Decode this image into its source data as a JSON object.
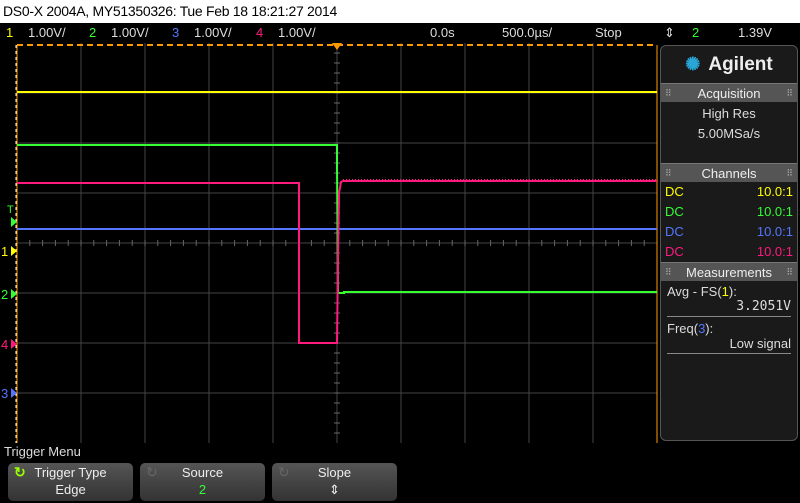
{
  "title": "DS0-X 2004A, MY51350326: Tue Feb 18 18:21:27 2014",
  "channels": [
    {
      "num": "1",
      "scale": "1.00V/",
      "color": "#ffff00",
      "coupling": "DC",
      "probe": "10.0:1"
    },
    {
      "num": "2",
      "scale": "1.00V/",
      "color": "#33ff33",
      "coupling": "DC",
      "probe": "10.0:1"
    },
    {
      "num": "3",
      "scale": "1.00V/",
      "color": "#5577ff",
      "coupling": "DC",
      "probe": "10.0:1"
    },
    {
      "num": "4",
      "scale": "1.00V/",
      "color": "#ff1a7f",
      "coupling": "DC",
      "probe": "10.0:1"
    }
  ],
  "timebase": {
    "delay": "0.0s",
    "scale": "500.0µs/",
    "run_state": "Stop"
  },
  "trigger": {
    "slope_icon": "either-edge-icon",
    "source": "2",
    "level": "1.39V",
    "marker": "T"
  },
  "panel": {
    "brand": "Agilent",
    "acquisition": {
      "header": "Acquisition",
      "mode": "High Res",
      "rate": "5.00MSa/s"
    },
    "channels_header": "Channels",
    "measurements": {
      "header": "Measurements",
      "items": [
        {
          "label_pre": "Avg - FS(",
          "src": "1",
          "label_post": "):",
          "value": "3.2051V"
        },
        {
          "label_pre": "Freq(",
          "src": "3",
          "label_post": "):",
          "value": "Low signal"
        }
      ]
    }
  },
  "menu": {
    "title": "Trigger Menu",
    "softkeys": [
      {
        "label": "Trigger Type",
        "value": "Edge"
      },
      {
        "label": "Source",
        "value": "2"
      },
      {
        "label": "Slope",
        "value": "⇕"
      }
    ]
  }
}
